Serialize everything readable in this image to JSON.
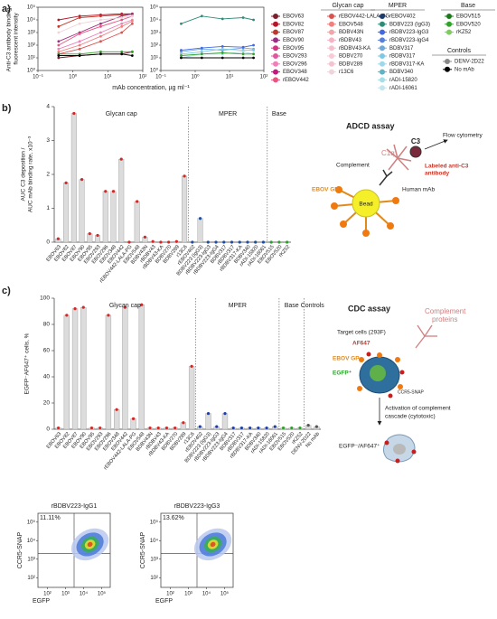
{
  "panels": [
    "a)",
    "b)",
    "c)"
  ],
  "legend": {
    "groups": [
      {
        "title": "Glycan cap",
        "entries": [
          {
            "name": "EBOV63",
            "color": "#7a1f2b"
          },
          {
            "name": "EBOV82",
            "color": "#b2182b"
          },
          {
            "name": "EBOV87",
            "color": "#c0392b"
          },
          {
            "name": "EBOV90",
            "color": "#9b2f7f"
          },
          {
            "name": "EBOV95",
            "color": "#d63384"
          },
          {
            "name": "EBOV293",
            "color": "#e056a0"
          },
          {
            "name": "EBOV296",
            "color": "#ee7fb8"
          },
          {
            "name": "EBOV348",
            "color": "#c71585"
          },
          {
            "name": "rEBOV442",
            "color": "#e75480"
          },
          {
            "name": "rEBOV442-LALA-PG",
            "color": "#d9534f"
          },
          {
            "name": "EBOV548",
            "color": "#f08080"
          },
          {
            "name": "BDBV43N",
            "color": "#f4a6a6"
          },
          {
            "name": "rBDBV43",
            "color": "#f5b3c5"
          },
          {
            "name": "rBDBV43-KA",
            "color": "#f7bfcc"
          },
          {
            "name": "BDBV270",
            "color": "#f9cad6"
          },
          {
            "name": "BDBV289",
            "color": "#f3c4cf"
          },
          {
            "name": "r13C6",
            "color": "#f2d3db"
          }
        ]
      },
      {
        "title": "MPER",
        "entries": [
          {
            "name": "rEBOV402",
            "color": "#1f3b6e"
          },
          {
            "name": "BDBV223 (IgG3)",
            "color": "#2e8b7a"
          },
          {
            "name": "rBDBV223-IgG3",
            "color": "#4169e1"
          },
          {
            "name": "rBDBV223-IgG4",
            "color": "#5a7fd6"
          },
          {
            "name": "BDBV317",
            "color": "#6fa8dc"
          },
          {
            "name": "rBDBV317",
            "color": "#7ec8e3"
          },
          {
            "name": "rBDBV317-KA",
            "color": "#9fd8ea"
          },
          {
            "name": "BDBV340",
            "color": "#5fb3c8"
          },
          {
            "name": "rADI-15820",
            "color": "#a8dde8"
          },
          {
            "name": "rADI-16061",
            "color": "#c2e6f0"
          }
        ]
      },
      {
        "title": "Base",
        "entries": [
          {
            "name": "EBOV515",
            "color": "#1a7a1a"
          },
          {
            "name": "EBOV520",
            "color": "#33a02c"
          },
          {
            "name": "rKZ52",
            "color": "#7ccd5a"
          }
        ]
      },
      {
        "title": "Controls",
        "entries": [
          {
            "name": "DENV-2D22",
            "color": "#888888"
          },
          {
            "name": "No mAb",
            "color": "#000000"
          }
        ]
      }
    ]
  },
  "diagrams": {
    "adcd": {
      "title": "ADCD assay",
      "flow": "Flow cytometry",
      "c3": "C3",
      "c1q": "C1q",
      "complement": "Complement",
      "labeled": [
        "Labeled anti-C3",
        "antibody"
      ],
      "gp": "EBOV GP",
      "mab": "Human mAb",
      "bead": "Bead"
    },
    "cdc": {
      "title": "CDC assay",
      "complement": [
        "Complement",
        "proteins"
      ],
      "target": "Target cells (293F)",
      "af647": "AF647",
      "gp": "EBOV GP",
      "egfp": "EGFP⁺",
      "ccr5": "CCR5-SNAP",
      "activation": [
        "Activation of complement",
        "cascade (cytotoxic)"
      ],
      "dead": "EGFP⁻/AF647⁺"
    }
  },
  "chart_data": [
    {
      "type": "line",
      "log_x": true,
      "log_y": true,
      "ylabel": [
        "Anti-C3 antibody binding,",
        "fluorescent intensity"
      ],
      "xlabel": "mAb concentration, µg ml⁻¹",
      "x": [
        0.39,
        1.56,
        6.25,
        25,
        50
      ],
      "xlim": [
        0.1,
        100
      ],
      "xticks": [
        {
          "value": 0.1,
          "label": "10⁻¹"
        },
        {
          "value": 1,
          "label": "10⁰"
        },
        {
          "value": 10,
          "label": "10¹"
        },
        {
          "value": 100,
          "label": "10²"
        }
      ],
      "ylim": [
        1,
        100000
      ],
      "yticks": [
        {
          "value": 1,
          "label": "10⁰"
        },
        {
          "value": 10,
          "label": "10¹"
        },
        {
          "value": 100,
          "label": "10²"
        },
        {
          "value": 1000,
          "label": "10³"
        },
        {
          "value": 10000,
          "label": "10⁴"
        },
        {
          "value": 100000,
          "label": "10⁵"
        }
      ],
      "series": [
        {
          "color": "#b2182b",
          "values": [
            10000,
            20000,
            25000,
            30000,
            30000
          ]
        },
        {
          "color": "#c0392b",
          "values": [
            3000,
            15000,
            20000,
            25000,
            28000
          ]
        },
        {
          "color": "#9b2f7f",
          "values": [
            200,
            1000,
            5000,
            20000,
            30000
          ]
        },
        {
          "color": "#e75480",
          "values": [
            100,
            800,
            3000,
            10000,
            20000
          ]
        },
        {
          "color": "#f2d3db",
          "values": [
            1000,
            5000,
            10000,
            15000,
            20000
          ]
        },
        {
          "color": "#ee7fb8",
          "values": [
            50,
            200,
            1000,
            5000,
            10000
          ]
        },
        {
          "color": "#f08080",
          "values": [
            30,
            100,
            500,
            3000,
            8000
          ]
        },
        {
          "color": "#d9534f",
          "values": [
            20,
            50,
            200,
            1000,
            5000
          ]
        },
        {
          "color": "#7a1f2b",
          "values": [
            10,
            15,
            20,
            20,
            30
          ]
        },
        {
          "color": "#33a02c",
          "values": [
            20,
            20,
            30,
            30,
            30
          ]
        },
        {
          "color": "#000000",
          "values": [
            15,
            15,
            20,
            20,
            15
          ]
        }
      ]
    },
    {
      "type": "line",
      "log_x": true,
      "log_y": true,
      "x": [
        0.39,
        1.56,
        6.25,
        25,
        50
      ],
      "xlim": [
        0.1,
        100
      ],
      "xticks": [
        {
          "value": 0.1,
          "label": "10⁻¹"
        },
        {
          "value": 1,
          "label": "10⁰"
        },
        {
          "value": 10,
          "label": "10¹"
        },
        {
          "value": 100,
          "label": "10²"
        }
      ],
      "ylim": [
        1,
        100000
      ],
      "yticks": [
        {
          "value": 1,
          "label": "10⁰"
        },
        {
          "value": 10,
          "label": "10¹"
        },
        {
          "value": 100,
          "label": "10²"
        },
        {
          "value": 1000,
          "label": "10³"
        },
        {
          "value": 10000,
          "label": "10⁴"
        },
        {
          "value": 100000,
          "label": "10⁵"
        }
      ],
      "series": [
        {
          "color": "#2e8b7a",
          "values": [
            5000,
            20000,
            12000,
            15000,
            10000
          ]
        },
        {
          "color": "#6fa8dc",
          "values": [
            30,
            50,
            40,
            60,
            50
          ]
        },
        {
          "color": "#7ec8e3",
          "values": [
            20,
            30,
            50,
            40,
            40
          ]
        },
        {
          "color": "#4169e1",
          "values": [
            40,
            60,
            80,
            70,
            100
          ]
        },
        {
          "color": "#a8dde8",
          "values": [
            10,
            20,
            20,
            30,
            20
          ]
        },
        {
          "color": "#33a02c",
          "values": [
            15,
            20,
            25,
            20,
            20
          ]
        },
        {
          "color": "#000000",
          "values": [
            10,
            10,
            10,
            10,
            10
          ]
        }
      ]
    },
    {
      "type": "bar",
      "ylabel": [
        "AUC C3 deposition /",
        "AUC mAb binding rate, x10⁻³"
      ],
      "ylim": [
        0,
        4
      ],
      "yticks": [
        0,
        1,
        2,
        3,
        4
      ],
      "bar_color": "#dcdcdc",
      "dividers": true,
      "groups": [
        {
          "label": "Glycan cap",
          "color": "#d62728",
          "categories": [
            "EBOV63",
            "EBOV82",
            "EBOV87",
            "EBOV90",
            "EBOV95",
            "EBOV293",
            "EBOV296",
            "EBOV348",
            "EBOV442",
            "rEBOV442-LALA-PG",
            "EBOV548",
            "BDBV43N",
            "rBDBV43",
            "rBDBV43-KA",
            "BDBV270",
            "BDBV289",
            "r13C6"
          ],
          "values": [
            0.1,
            1.75,
            3.8,
            1.85,
            0.25,
            0.2,
            1.5,
            1.5,
            2.45,
            0,
            1.2,
            0.15,
            0.02,
            0,
            0,
            0.02,
            1.95
          ]
        },
        {
          "label": "MPER",
          "color": "#1f4ea0",
          "categories": [
            "rEBOV402",
            "BDBV223 (IgG3)",
            "rBDBV223-IgG3",
            "rBDBV223-IgG4",
            "BDBV317",
            "rBDBV317",
            "rBDBV317-KA",
            "BDBV340",
            "rADI-15820",
            "rADI-16061"
          ],
          "values": [
            0,
            0.7,
            0,
            0,
            0,
            0,
            0,
            0,
            0,
            0
          ]
        },
        {
          "label": "Base",
          "color": "#2ca02c",
          "categories": [
            "EBOV515",
            "EBOV520",
            "rKZ52"
          ],
          "values": [
            0,
            0,
            0
          ]
        }
      ]
    },
    {
      "type": "bar",
      "ylabel": [
        "EGFP⁻AF647⁺ cells, %"
      ],
      "ylim": [
        0,
        100
      ],
      "yticks": [
        0,
        20,
        40,
        60,
        80,
        100
      ],
      "bar_color": "#dcdcdc",
      "dividers": true,
      "groups": [
        {
          "label": "Glycan cap",
          "color": "#d62728",
          "categories": [
            "EBOV63",
            "EBOV82",
            "EBOV87",
            "EBOV90",
            "EBOV95",
            "EBOV293",
            "EBOV296",
            "EBOV348",
            "EBOV442",
            "rEBOV442-LALA-PG",
            "EBOV548",
            "BDBV43N",
            "rBDBV43",
            "rBDBV43-KA",
            "BDBV270",
            "BDBV289",
            "r13C6"
          ],
          "values": [
            1,
            87,
            92,
            93,
            1,
            1,
            87,
            15,
            93,
            8,
            95,
            1,
            1,
            1,
            1,
            5,
            48
          ]
        },
        {
          "label": "MPER",
          "color": "#1f3fa8",
          "categories": [
            "rEBOV402",
            "BDBV223 (IgG3)",
            "rBDBV223-IgG3",
            "rBDBV223-IgG4",
            "BDBV317",
            "rBDBV317",
            "rBDBV317-KA",
            "BDBV340",
            "rADI-15820",
            "rADI-16061"
          ],
          "values": [
            2,
            12,
            2,
            12,
            1,
            1,
            1,
            1,
            1,
            2
          ]
        },
        {
          "label": "Base",
          "color": "#2ca02c",
          "categories": [
            "EBOV515",
            "EBOV520",
            "rKZ52"
          ],
          "values": [
            1,
            1,
            1
          ]
        },
        {
          "label": "Controls",
          "color": "#555555",
          "categories": [
            "DENV-2D22",
            "No mAb"
          ],
          "values": [
            3,
            2
          ]
        }
      ]
    },
    {
      "type": "flow",
      "title": "rBDBV223-IgG1",
      "quadrant": "11.11%",
      "xlabel": "EGFP",
      "ylabel": "CCR5-SNAP",
      "xlim": [
        30,
        300000
      ],
      "ylim": [
        30,
        300000
      ],
      "gates": [
        3000,
        2000
      ],
      "xticks": [
        {
          "value": 100,
          "label": "10²"
        },
        {
          "value": 1000,
          "label": "10³"
        },
        {
          "value": 10000,
          "label": "10⁴"
        },
        {
          "value": 100000,
          "label": "10⁵"
        }
      ],
      "yticks": [
        {
          "value": 100,
          "label": "10²"
        },
        {
          "value": 1000,
          "label": "10³"
        },
        {
          "value": 10000,
          "label": "10⁴"
        },
        {
          "value": 100000,
          "label": "10⁵"
        }
      ]
    },
    {
      "type": "flow",
      "title": "rBDBV223-IgG3",
      "quadrant": "13.62%",
      "xlabel": "EGFP",
      "ylabel": "CCR5-SNAP",
      "xlim": [
        30,
        300000
      ],
      "ylim": [
        30,
        300000
      ],
      "gates": [
        3000,
        2000
      ],
      "xticks": [
        {
          "value": 100,
          "label": "10²"
        },
        {
          "value": 1000,
          "label": "10³"
        },
        {
          "value": 10000,
          "label": "10⁴"
        },
        {
          "value": 100000,
          "label": "10⁵"
        }
      ],
      "yticks": [
        {
          "value": 100,
          "label": "10²"
        },
        {
          "value": 1000,
          "label": "10³"
        },
        {
          "value": 10000,
          "label": "10⁴"
        },
        {
          "value": 100000,
          "label": "10⁵"
        }
      ]
    }
  ]
}
